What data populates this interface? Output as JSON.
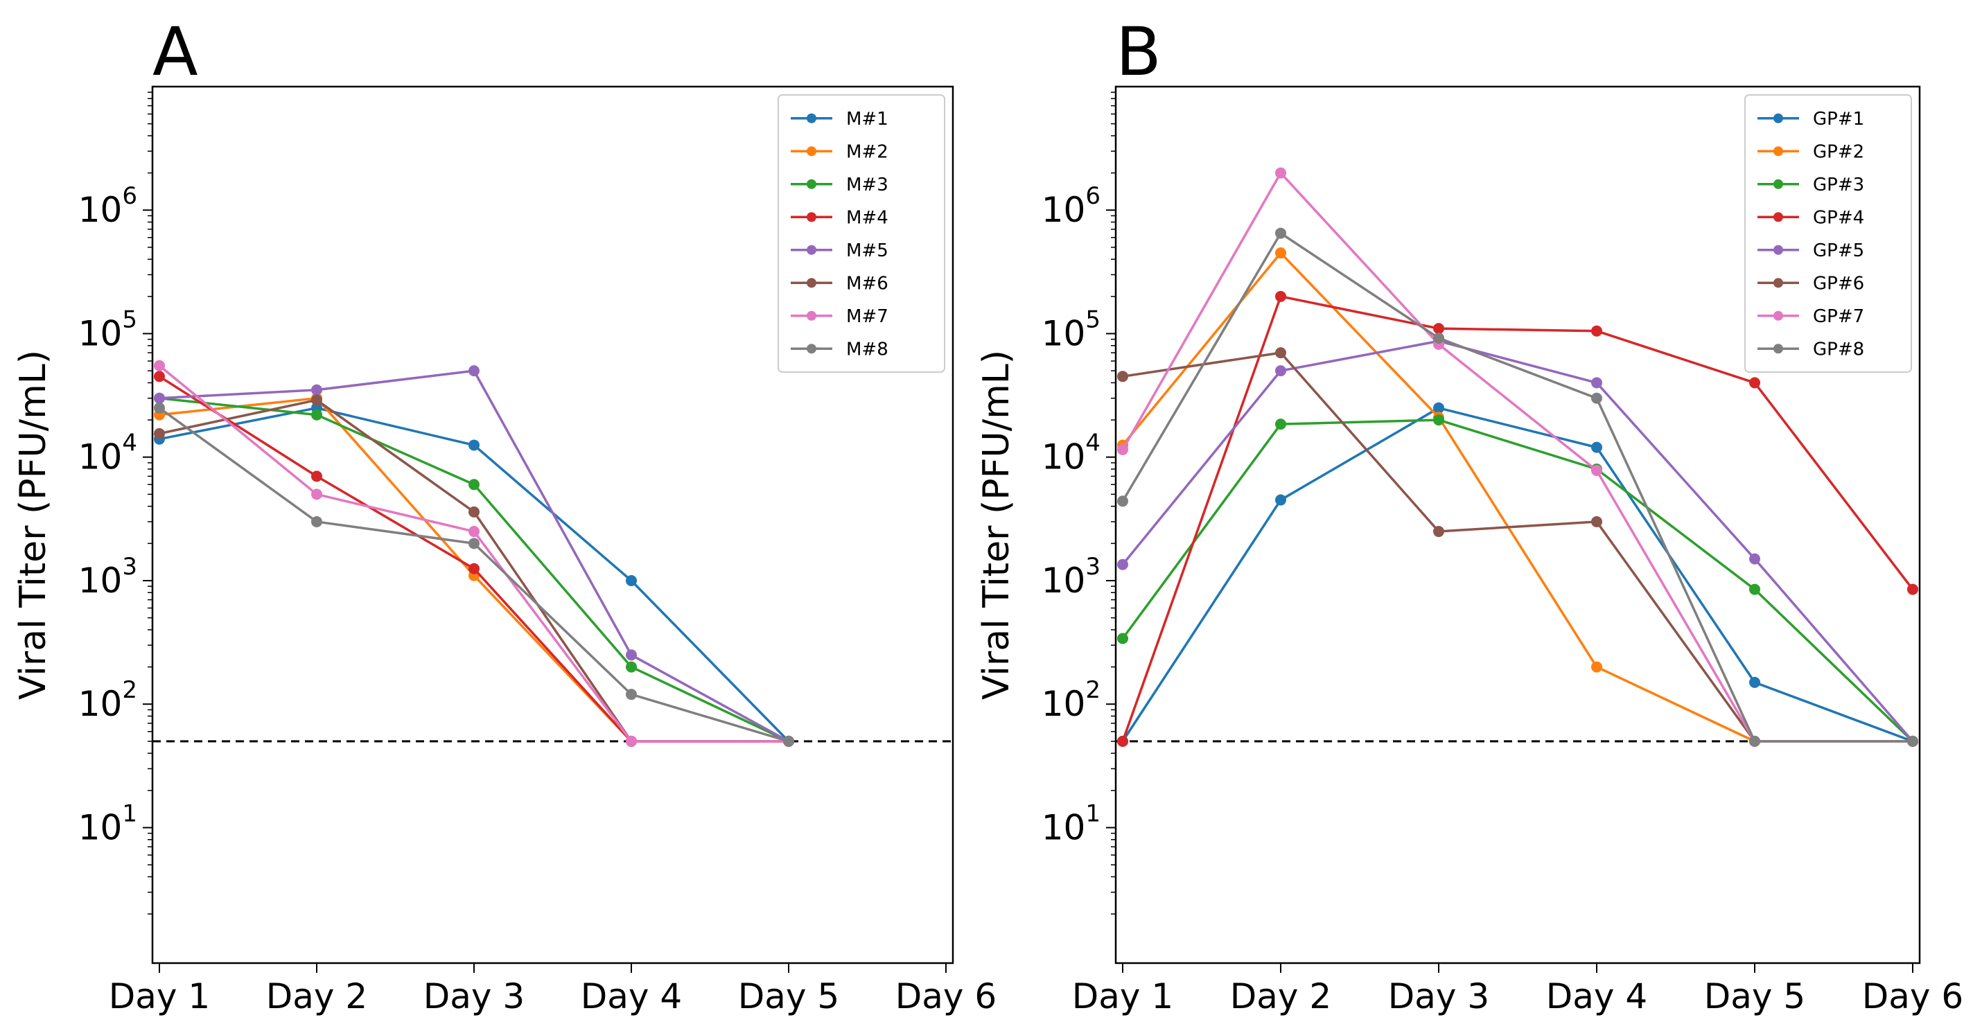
{
  "chart_data": [
    {
      "panel": "A",
      "type": "line",
      "title": "",
      "xlabel": "",
      "ylabel": "Viral Titer (PFU/mL)",
      "yscale": "log",
      "ylim": [
        0.8,
        10000000
      ],
      "ytick_values": [
        1,
        2,
        3,
        4,
        5,
        6
      ],
      "ytick_base": "10",
      "categories": [
        "Day 1",
        "Day 2",
        "Day 3",
        "Day 4",
        "Day 5",
        "Day 6"
      ],
      "detection_limit": 50,
      "legend_position": "top-right",
      "series": [
        {
          "name": "M#1",
          "color": "#1f77b4",
          "values": [
            14000,
            25000,
            12500,
            1000,
            50,
            null
          ]
        },
        {
          "name": "M#2",
          "color": "#ff7f0e",
          "values": [
            22000,
            30000,
            1100,
            50,
            50,
            null
          ]
        },
        {
          "name": "M#3",
          "color": "#2ca02c",
          "values": [
            30000,
            22000,
            6000,
            200,
            50,
            null
          ]
        },
        {
          "name": "M#4",
          "color": "#d62728",
          "values": [
            45000,
            7000,
            1250,
            50,
            50,
            null
          ]
        },
        {
          "name": "M#5",
          "color": "#9467bd",
          "values": [
            30000,
            35000,
            50000,
            250,
            50,
            null
          ]
        },
        {
          "name": "M#6",
          "color": "#8c564b",
          "values": [
            15500,
            29000,
            3600,
            50,
            50,
            null
          ]
        },
        {
          "name": "M#7",
          "color": "#e377c2",
          "values": [
            55000,
            5000,
            2500,
            50,
            50,
            null
          ]
        },
        {
          "name": "M#8",
          "color": "#7f7f7f",
          "values": [
            25000,
            3000,
            2000,
            120,
            50,
            null
          ]
        }
      ]
    },
    {
      "panel": "B",
      "type": "line",
      "title": "",
      "xlabel": "",
      "ylabel": "Viral Titer (PFU/mL)",
      "yscale": "log",
      "ylim": [
        0.8,
        10000000
      ],
      "ytick_values": [
        1,
        2,
        3,
        4,
        5,
        6
      ],
      "ytick_base": "10",
      "categories": [
        "Day 1",
        "Day 2",
        "Day 3",
        "Day 4",
        "Day 5",
        "Day 6"
      ],
      "detection_limit": 50,
      "legend_position": "top-right",
      "series": [
        {
          "name": "GP#1",
          "color": "#1f77b4",
          "values": [
            50,
            4500,
            25000,
            12000,
            150,
            50
          ]
        },
        {
          "name": "GP#2",
          "color": "#ff7f0e",
          "values": [
            12500,
            450000,
            21000,
            200,
            50,
            50
          ]
        },
        {
          "name": "GP#3",
          "color": "#2ca02c",
          "values": [
            340,
            18500,
            20000,
            8000,
            850,
            50
          ]
        },
        {
          "name": "GP#4",
          "color": "#d62728",
          "values": [
            50,
            200000,
            110000,
            105000,
            40000,
            850
          ]
        },
        {
          "name": "GP#5",
          "color": "#9467bd",
          "values": [
            1350,
            50000,
            87000,
            40000,
            1500,
            50
          ]
        },
        {
          "name": "GP#6",
          "color": "#8c564b",
          "values": [
            45000,
            70000,
            2500,
            3000,
            50,
            50
          ]
        },
        {
          "name": "GP#7",
          "color": "#e377c2",
          "values": [
            11500,
            2000000,
            82000,
            7800,
            50,
            50
          ]
        },
        {
          "name": "GP#8",
          "color": "#7f7f7f",
          "values": [
            4400,
            650000,
            92000,
            30000,
            50,
            50
          ]
        }
      ]
    }
  ]
}
